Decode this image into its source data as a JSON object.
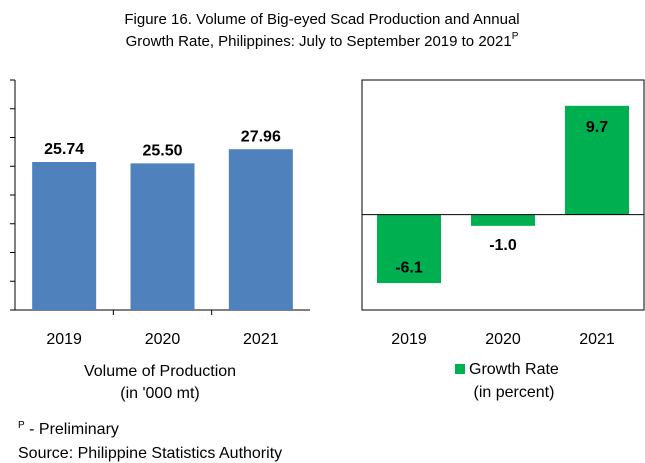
{
  "figure": {
    "title_lines": [
      "Figure 16. Volume of Big-eyed Scad Production and  Annual",
      "Growth Rate, Philippines: July to September 2019 to 2021"
    ],
    "title_superscript": "P"
  },
  "chart_data": [
    {
      "type": "bar",
      "categories": [
        "2019",
        "2020",
        "2021"
      ],
      "values": [
        25.74,
        25.5,
        27.96
      ],
      "value_labels": [
        "25.74",
        "25.50",
        "27.96"
      ],
      "color": "#4f81bd",
      "ylim": [
        0,
        40
      ],
      "yticks": [
        0,
        5,
        10,
        15,
        20,
        25,
        30,
        35,
        40
      ],
      "x_label_lines": [
        "Volume of Production",
        "(in '000 mt)"
      ]
    },
    {
      "type": "bar",
      "categories": [
        "2019",
        "2020",
        "2021"
      ],
      "series": [
        {
          "name": "Growth Rate",
          "color": "#00b050",
          "values": [
            -6.1,
            -1.0,
            9.7
          ]
        }
      ],
      "value_labels": [
        "-6.1",
        "-1.0",
        "9.7"
      ],
      "ylim": [
        -8.5,
        12
      ],
      "legend_subtitle": "(in percent)"
    }
  ],
  "notes": {
    "superscript": "P",
    "preliminary": " - Preliminary",
    "source": "Source: Philippine Statistics Authority"
  }
}
